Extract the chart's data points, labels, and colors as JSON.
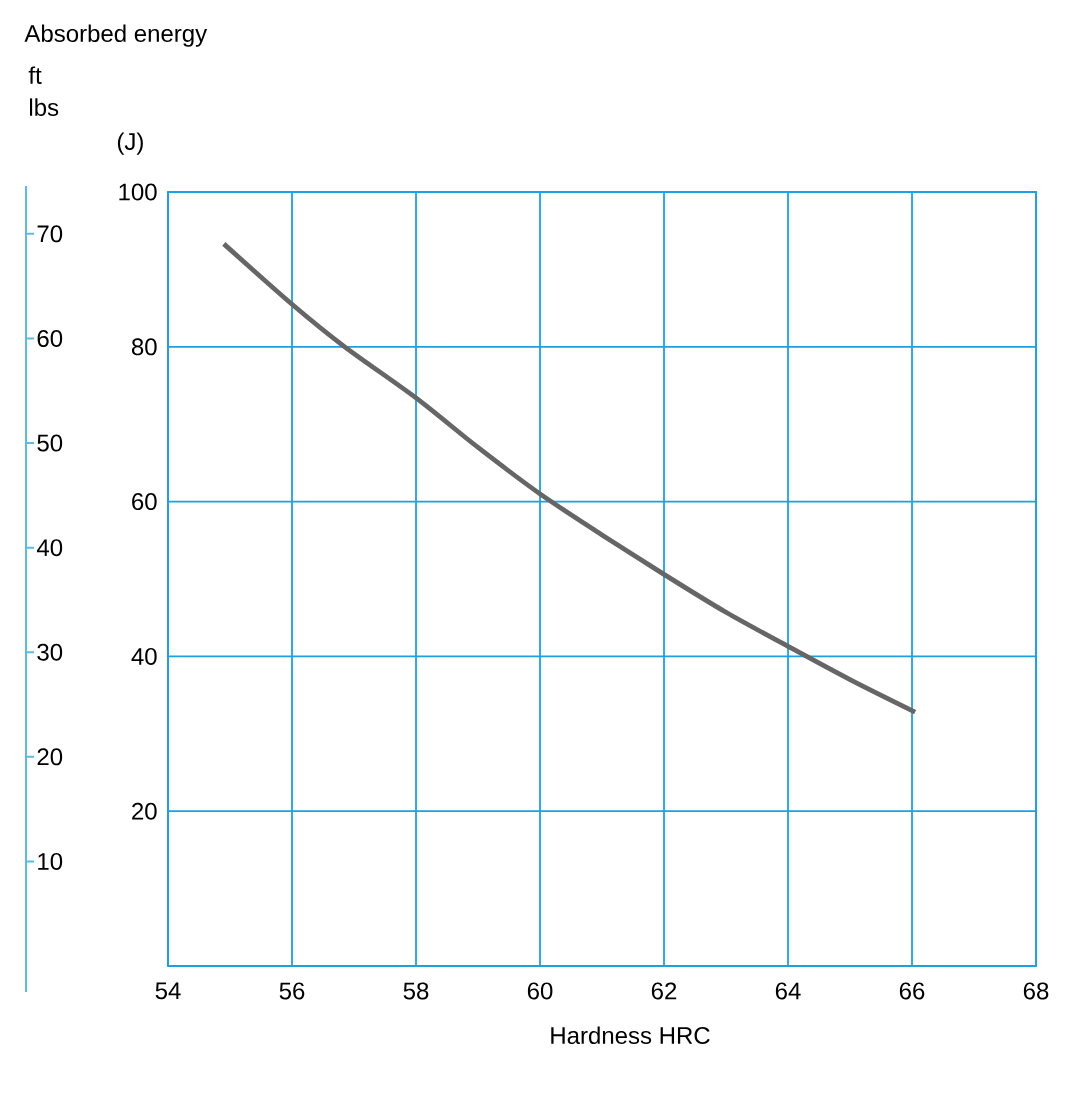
{
  "chart_data": {
    "type": "line",
    "title": "Absorbed energy",
    "xlabel": "Hardness HRC",
    "ylabel": "(J)",
    "y2label": "ft lbs",
    "xlim": [
      54,
      68
    ],
    "xticks": [
      54,
      56,
      58,
      60,
      62,
      64,
      66,
      68
    ],
    "ylim": [
      0,
      100
    ],
    "yticks": [
      20,
      40,
      60,
      80,
      100
    ],
    "y2lim": [
      0,
      74
    ],
    "y2ticks": [
      10,
      20,
      30,
      40,
      50,
      60,
      70
    ],
    "grid": true,
    "series": [
      {
        "color": "#666666",
        "x": [
          54.9,
          56,
          56.85,
          58,
          59,
          60,
          61,
          62,
          63,
          64,
          65,
          66.05
        ],
        "values": [
          93.3,
          85.5,
          80,
          73.4,
          67,
          61,
          55.7,
          50.6,
          45.7,
          41.3,
          37,
          32.8
        ]
      }
    ]
  }
}
